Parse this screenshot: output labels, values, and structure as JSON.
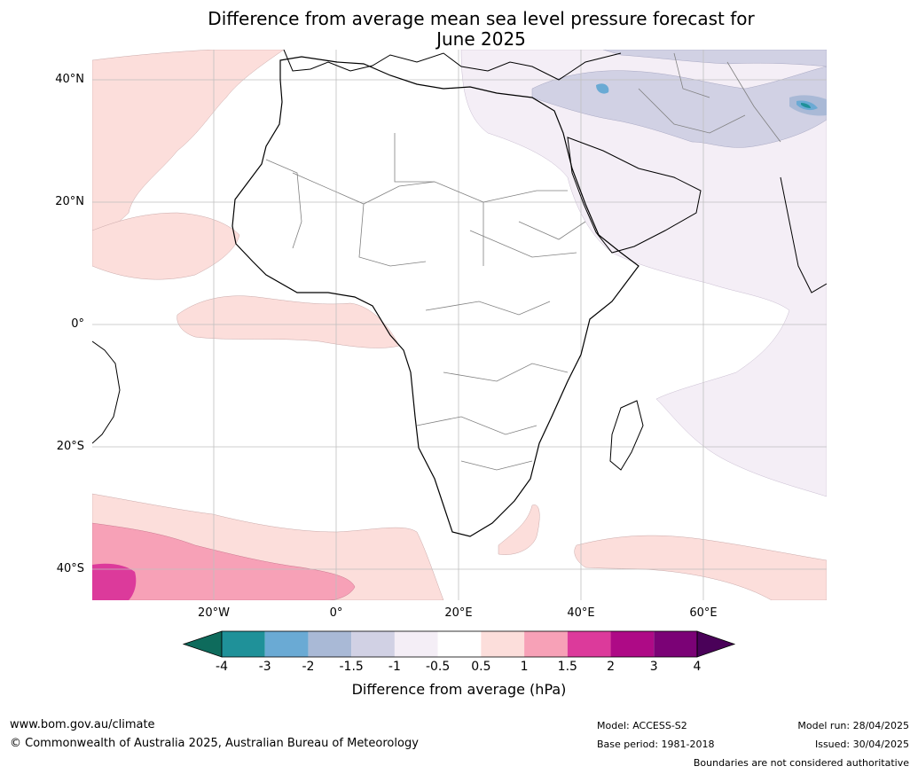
{
  "title_line1": "Difference from average mean sea level pressure forecast for",
  "title_line2": "June 2025",
  "lat_labels": [
    "40°N",
    "20°N",
    "0°",
    "20°S",
    "40°S"
  ],
  "lon_labels": [
    "20°W",
    "0°",
    "20°E",
    "40°E",
    "60°E"
  ],
  "colorbar": {
    "label": "Difference from average (hPa)",
    "ticks": [
      "-4",
      "-3",
      "-2",
      "-1.5",
      "-1",
      "-0.5",
      "0.5",
      "1",
      "1.5",
      "2",
      "3",
      "4"
    ],
    "colors": [
      "#0e6b5c",
      "#1f9199",
      "#6aaad4",
      "#a9b9d6",
      "#d1d1e4",
      "#f4eef6",
      "#ffffff",
      "#fcdedb",
      "#f7a1b7",
      "#dc3a9b",
      "#ae0a86",
      "#7b0276",
      "#4a0159"
    ]
  },
  "footer": {
    "url": "www.bom.gov.au/climate",
    "copyright": "© Commonwealth of Australia 2025, Australian Bureau of Meteorology",
    "model": "Model: ACCESS-S2",
    "base_period": "Base period: 1981-2018",
    "model_run": "Model run: 28/04/2025",
    "issued": "Issued: 30/04/2025",
    "disclaimer": "Boundaries are not considered authoritative"
  }
}
